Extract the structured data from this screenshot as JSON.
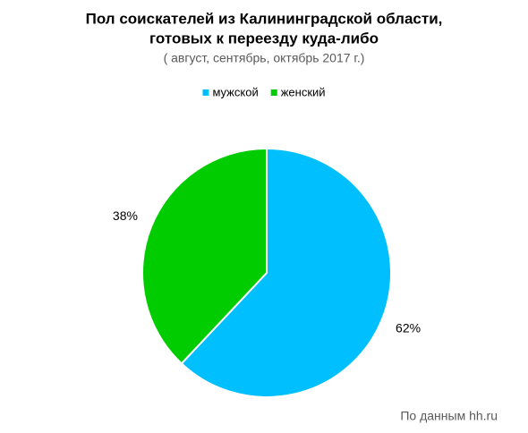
{
  "chart_data": {
    "type": "pie",
    "title": [
      "Пол соискателей из Калининградской области,",
      "готовых к переезду куда-либо"
    ],
    "subtitle": "( август, сентябрь, октябрь 2017 г.)",
    "categories": [
      "мужской",
      "женский"
    ],
    "values": [
      62,
      38
    ],
    "value_labels": [
      "62%",
      "38%"
    ],
    "colors": [
      "#00bfff",
      "#00cc00"
    ],
    "legend": "top",
    "source": "По данным hh.ru"
  }
}
